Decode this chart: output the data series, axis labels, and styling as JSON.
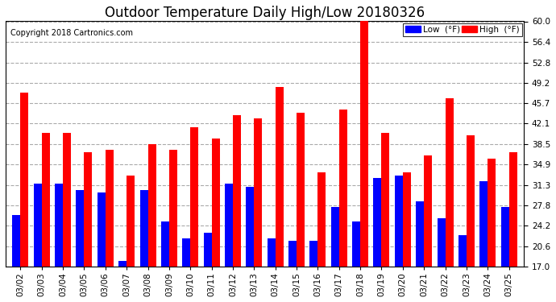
{
  "title": "Outdoor Temperature Daily High/Low 20180326",
  "copyright": "Copyright 2018 Cartronics.com",
  "dates": [
    "03/02",
    "03/03",
    "03/04",
    "03/05",
    "03/06",
    "03/07",
    "03/08",
    "03/09",
    "03/10",
    "03/11",
    "03/12",
    "03/13",
    "03/14",
    "03/15",
    "03/16",
    "03/17",
    "03/18",
    "03/19",
    "03/20",
    "03/21",
    "03/22",
    "03/23",
    "03/24",
    "03/25"
  ],
  "highs": [
    47.5,
    40.5,
    40.5,
    37.0,
    37.5,
    33.0,
    38.5,
    37.5,
    41.5,
    39.5,
    43.5,
    43.0,
    48.5,
    44.0,
    33.5,
    44.5,
    60.5,
    40.5,
    33.5,
    36.5,
    46.5,
    40.0,
    36.0,
    37.0
  ],
  "lows": [
    26.0,
    31.5,
    31.5,
    30.5,
    30.0,
    18.0,
    30.5,
    25.0,
    22.0,
    23.0,
    31.5,
    31.0,
    22.0,
    21.5,
    21.5,
    27.5,
    25.0,
    32.5,
    33.0,
    28.5,
    25.5,
    22.5,
    32.0,
    27.5
  ],
  "ymin": 17.0,
  "ymax": 60.0,
  "yticks": [
    17.0,
    20.6,
    24.2,
    27.8,
    31.3,
    34.9,
    38.5,
    42.1,
    45.7,
    49.2,
    52.8,
    56.4,
    60.0
  ],
  "low_color": "#0000ff",
  "high_color": "#ff0000",
  "bg_color": "#ffffff",
  "plot_bg_color": "#ffffff",
  "grid_color": "#aaaaaa",
  "bar_width": 0.38,
  "legend_low_label": "Low  (°F)",
  "legend_high_label": "High  (°F)",
  "title_fontsize": 12,
  "copyright_fontsize": 7,
  "tick_fontsize": 7.5
}
